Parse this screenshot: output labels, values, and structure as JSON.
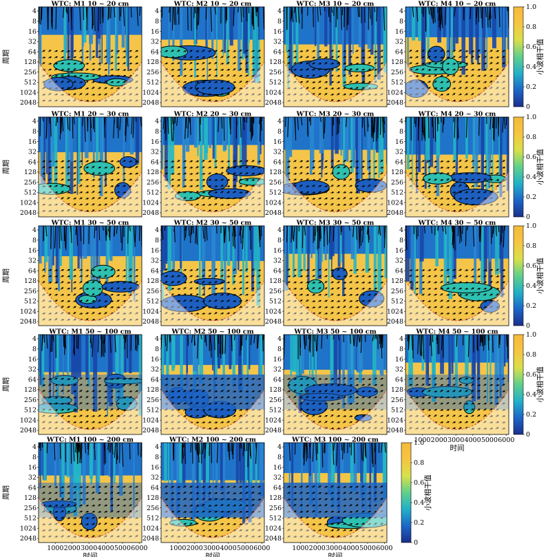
{
  "chart_data": {
    "type": "heatmap",
    "description_terms": {
      "ylabel": "周期",
      "xlabel": "时间",
      "colorbar_label": "小波相干值"
    },
    "y_ticks": [
      "4",
      "8",
      "16",
      "32",
      "64",
      "128",
      "256",
      "512",
      "1024",
      "2048"
    ],
    "x_ticks": [
      "1000",
      "2000",
      "3000",
      "4000",
      "5000",
      "6000"
    ],
    "colorbar_ticks": [
      "0",
      "0.2",
      "0.4",
      "0.6",
      "0.8",
      "1.0"
    ],
    "colorbar_range": [
      0,
      1.0
    ],
    "colormap": [
      "#1a2f8c",
      "#1c66c8",
      "#22b0c8",
      "#5fd08a",
      "#d8e04a",
      "#f6c542",
      "#f5b93a"
    ],
    "panels": [
      {
        "title": "WTC: M1 10 ~ 20 cm",
        "row": 0,
        "col": 0
      },
      {
        "title": "WTC: M2 10 ~ 20 cm",
        "row": 0,
        "col": 1
      },
      {
        "title": "WTC: M3 10 ~ 20 cm",
        "row": 0,
        "col": 2
      },
      {
        "title": "WTC: M4 10 ~ 20 cm",
        "row": 0,
        "col": 3
      },
      {
        "title": "WTC: M1 20 ~ 30 cm",
        "row": 1,
        "col": 0
      },
      {
        "title": "WTC: M2 20 ~ 30 cm",
        "row": 1,
        "col": 1
      },
      {
        "title": "WTC: M3 20 ~ 30 cm",
        "row": 1,
        "col": 2
      },
      {
        "title": "WTC: M4 20 ~ 30 cm",
        "row": 1,
        "col": 3
      },
      {
        "title": "WTC: M1 30 ~ 50 cm",
        "row": 2,
        "col": 0
      },
      {
        "title": "WTC: M2 30 ~ 50 cm",
        "row": 2,
        "col": 1
      },
      {
        "title": "WTC: M3 30 ~ 50 cm",
        "row": 2,
        "col": 2
      },
      {
        "title": "WTC: M4 30 ~ 50 cm",
        "row": 2,
        "col": 3
      },
      {
        "title": "WTC: M1 50 ~ 100 cm",
        "row": 3,
        "col": 0
      },
      {
        "title": "WTC: M2 50 ~ 100 cm",
        "row": 3,
        "col": 1
      },
      {
        "title": "WTC: M3 50 ~ 100 cm",
        "row": 3,
        "col": 2
      },
      {
        "title": "WTC: M4 50 ~ 100 cm",
        "row": 3,
        "col": 3
      },
      {
        "title": "WTC: M1 100 ~ 200 cm",
        "row": 4,
        "col": 0
      },
      {
        "title": "WTC: M2 100 ~ 200 cm",
        "row": 4,
        "col": 1
      },
      {
        "title": "WTC: M3 100 ~ 200 cm",
        "row": 4,
        "col": 2
      }
    ],
    "colorbars": [
      {
        "row": 0,
        "col": 4
      },
      {
        "row": 1,
        "col": 4
      },
      {
        "row": 2,
        "col": 4
      },
      {
        "row": 3,
        "col": 4
      },
      {
        "row": 4,
        "col": 3
      }
    ],
    "y_labelled_cols": [
      0
    ],
    "x_labelled": [
      {
        "row": 3,
        "col": 3
      },
      {
        "row": 4,
        "col": 0
      },
      {
        "row": 4,
        "col": 1
      },
      {
        "row": 4,
        "col": 2
      }
    ]
  }
}
